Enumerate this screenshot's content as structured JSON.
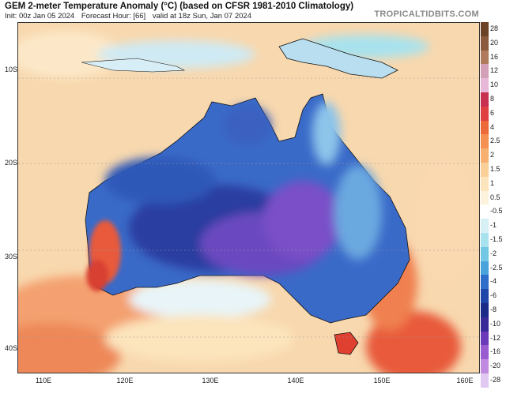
{
  "header": {
    "title": "GEM 2-meter Temperature Anomaly (°C) (based on CFSR 1981-2010 Climatology)",
    "init": "Init: 00z Jan 05 2024",
    "forecast_hour": "Forecast Hour: [66]",
    "valid": "valid at 18z Sun, Jan 07 2024",
    "brand": "TROPICALTIDBITS.COM"
  },
  "axes": {
    "lat_labels": [
      "10S",
      "20S",
      "30S",
      "40S"
    ],
    "lon_labels": [
      "110E",
      "120E",
      "130E",
      "140E",
      "150E",
      "160E"
    ]
  },
  "colorbar": {
    "labels": [
      "28",
      "20",
      "16",
      "12",
      "10",
      "8",
      "6",
      "4",
      "2.5",
      "2",
      "1.5",
      "1",
      "0.5",
      "-0.5",
      "-1",
      "-1.5",
      "-2",
      "-2.5",
      "-4",
      "-6",
      "-8",
      "-10",
      "-12",
      "-16",
      "-20",
      "-28"
    ],
    "colors": [
      "#6b4226",
      "#8b5a3c",
      "#b07a5c",
      "#d4a0b8",
      "#e8b8d8",
      "#c83050",
      "#e04040",
      "#ec6a3a",
      "#f49050",
      "#f8b070",
      "#fad098",
      "#fce4bc",
      "#fdf3dc",
      "#ffffff",
      "#d6f0f6",
      "#a8e2ee",
      "#72c8e4",
      "#4aa4dc",
      "#2f6ec8",
      "#1e46a8",
      "#1a2a88",
      "#3a2a98",
      "#6a3ab8",
      "#9a5ad0",
      "#c08ae0",
      "#e0c8f0"
    ]
  },
  "map": {
    "background_color": "#f8d8ae",
    "land_cold_color": "#2f58b8",
    "land_core_color": "#6a48c0",
    "warm_color": "#e85a3a",
    "coast_color": "#111111"
  }
}
